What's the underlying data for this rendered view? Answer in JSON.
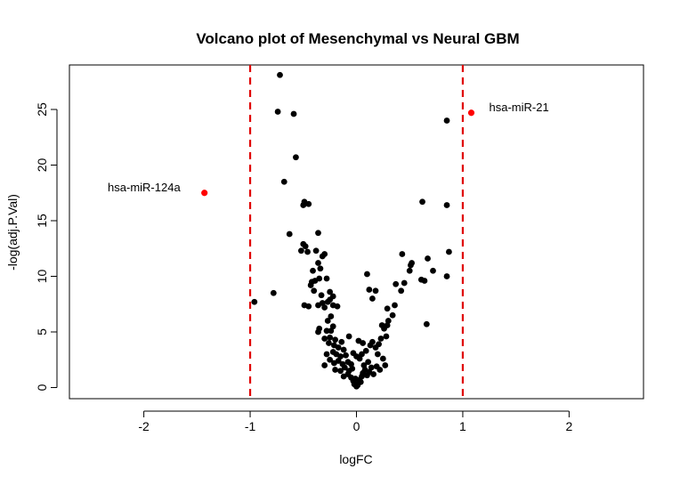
{
  "chart_data": {
    "type": "scatter",
    "title": "Volcano plot of Mesenchymal vs Neural GBM",
    "xlabel": "logFC",
    "ylabel": "-log(adj.P.Val)",
    "xlim": [
      -2.7,
      2.7
    ],
    "ylim": [
      -1.0,
      29.0
    ],
    "x_ticks": [
      -2,
      -1,
      0,
      1,
      2
    ],
    "y_ticks": [
      0,
      5,
      10,
      15,
      20,
      25
    ],
    "thresholds": [
      -1,
      1
    ],
    "threshold_color": "#e00000",
    "point_color": "#000000",
    "highlight_color": "#ff0000",
    "grid": false,
    "points": [
      [
        -0.72,
        28.1
      ],
      [
        -0.74,
        24.8
      ],
      [
        -0.59,
        24.6
      ],
      [
        -0.57,
        20.7
      ],
      [
        -0.68,
        18.5
      ],
      [
        -0.49,
        16.7
      ],
      [
        -0.5,
        16.4
      ],
      [
        -0.45,
        16.5
      ],
      [
        -0.63,
        13.8
      ],
      [
        -0.36,
        13.9
      ],
      [
        -0.5,
        12.9
      ],
      [
        -0.48,
        12.7
      ],
      [
        -0.46,
        12.2
      ],
      [
        -0.52,
        12.3
      ],
      [
        -0.38,
        12.3
      ],
      [
        -0.32,
        11.8
      ],
      [
        -0.3,
        12.0
      ],
      [
        -0.36,
        11.2
      ],
      [
        -0.41,
        10.5
      ],
      [
        -0.34,
        10.7
      ],
      [
        -0.39,
        9.6
      ],
      [
        -0.35,
        9.8
      ],
      [
        -0.28,
        9.8
      ],
      [
        -0.43,
        9.2
      ],
      [
        -0.42,
        9.5
      ],
      [
        -0.4,
        8.7
      ],
      [
        -0.33,
        8.3
      ],
      [
        -0.25,
        8.6
      ],
      [
        -0.22,
        8.2
      ],
      [
        -0.78,
        8.5
      ],
      [
        -0.96,
        7.7
      ],
      [
        -0.49,
        7.4
      ],
      [
        -0.45,
        7.3
      ],
      [
        -0.36,
        7.4
      ],
      [
        -0.32,
        7.6
      ],
      [
        -0.3,
        7.2
      ],
      [
        -0.27,
        7.7
      ],
      [
        -0.25,
        7.9
      ],
      [
        -0.22,
        7.4
      ],
      [
        -0.18,
        7.3
      ],
      [
        -0.24,
        6.4
      ],
      [
        -0.27,
        6.0
      ],
      [
        -0.35,
        5.3
      ],
      [
        -0.36,
        5.0
      ],
      [
        -0.28,
        5.1
      ],
      [
        -0.22,
        5.5
      ],
      [
        -0.24,
        5.1
      ],
      [
        -0.3,
        4.4
      ],
      [
        -0.25,
        4.5
      ],
      [
        -0.2,
        4.3
      ],
      [
        -0.26,
        4.0
      ],
      [
        -0.21,
        3.8
      ],
      [
        -0.17,
        3.6
      ],
      [
        -0.14,
        4.1
      ],
      [
        -0.12,
        3.4
      ],
      [
        -0.28,
        3.0
      ],
      [
        -0.22,
        3.2
      ],
      [
        -0.19,
        3.0
      ],
      [
        -0.15,
        2.8
      ],
      [
        -0.1,
        2.9
      ],
      [
        -0.25,
        2.5
      ],
      [
        -0.21,
        2.2
      ],
      [
        -0.3,
        2.0
      ],
      [
        -0.17,
        2.4
      ],
      [
        -0.13,
        2.1
      ],
      [
        -0.08,
        2.3
      ],
      [
        -0.05,
        2.1
      ],
      [
        -0.2,
        1.6
      ],
      [
        -0.15,
        1.5
      ],
      [
        -0.11,
        1.8
      ],
      [
        -0.07,
        1.5
      ],
      [
        -0.04,
        1.7
      ],
      [
        -0.12,
        1.0
      ],
      [
        -0.08,
        1.2
      ],
      [
        -0.05,
        0.9
      ],
      [
        -0.03,
        0.6
      ],
      [
        -0.02,
        0.3
      ],
      [
        0.0,
        0.1
      ],
      [
        0.01,
        0.2
      ],
      [
        0.02,
        0.4
      ],
      [
        0.03,
        0.7
      ],
      [
        0.05,
        1.0
      ],
      [
        0.04,
        0.5
      ],
      [
        -0.01,
        0.8
      ],
      [
        0.06,
        1.3
      ],
      [
        0.08,
        1.6
      ],
      [
        0.1,
        1.1
      ],
      [
        0.12,
        1.4
      ],
      [
        0.07,
        2.0
      ],
      [
        0.11,
        2.3
      ],
      [
        0.14,
        1.8
      ],
      [
        0.16,
        1.2
      ],
      [
        0.03,
        2.6
      ],
      [
        0.05,
        3.0
      ],
      [
        0.09,
        3.3
      ],
      [
        -0.03,
        3.1
      ],
      [
        0.0,
        2.8
      ],
      [
        0.13,
        3.8
      ],
      [
        0.15,
        4.1
      ],
      [
        0.18,
        3.6
      ],
      [
        0.21,
        3.9
      ],
      [
        0.23,
        4.4
      ],
      [
        0.2,
        3.0
      ],
      [
        0.25,
        2.6
      ],
      [
        0.27,
        2.0
      ],
      [
        0.22,
        1.6
      ],
      [
        0.19,
        1.9
      ],
      [
        0.28,
        4.6
      ],
      [
        0.26,
        5.3
      ],
      [
        0.24,
        5.6
      ],
      [
        0.3,
        6.0
      ],
      [
        0.29,
        5.6
      ],
      [
        0.02,
        4.2
      ],
      [
        -0.07,
        4.6
      ],
      [
        0.06,
        4.0
      ],
      [
        0.12,
        8.8
      ],
      [
        0.1,
        10.2
      ],
      [
        0.18,
        8.7
      ],
      [
        0.15,
        8.0
      ],
      [
        0.29,
        7.1
      ],
      [
        0.36,
        7.4
      ],
      [
        0.42,
        8.7
      ],
      [
        0.37,
        9.3
      ],
      [
        0.45,
        9.4
      ],
      [
        0.5,
        10.5
      ],
      [
        0.51,
        11.0
      ],
      [
        0.52,
        11.2
      ],
      [
        0.43,
        12.0
      ],
      [
        0.61,
        9.7
      ],
      [
        0.64,
        9.6
      ],
      [
        0.67,
        11.6
      ],
      [
        0.72,
        10.5
      ],
      [
        0.85,
        10.0
      ],
      [
        0.87,
        12.2
      ],
      [
        0.66,
        5.7
      ],
      [
        0.34,
        6.5
      ],
      [
        0.62,
        16.7
      ],
      [
        0.85,
        16.4
      ],
      [
        0.85,
        24.0
      ]
    ],
    "highlighted": [
      {
        "label": "hsa-miR-124a",
        "x": -1.43,
        "y": 17.5,
        "label_side": "left"
      },
      {
        "label": "hsa-miR-21",
        "x": 1.08,
        "y": 24.7,
        "label_side": "right"
      }
    ]
  }
}
